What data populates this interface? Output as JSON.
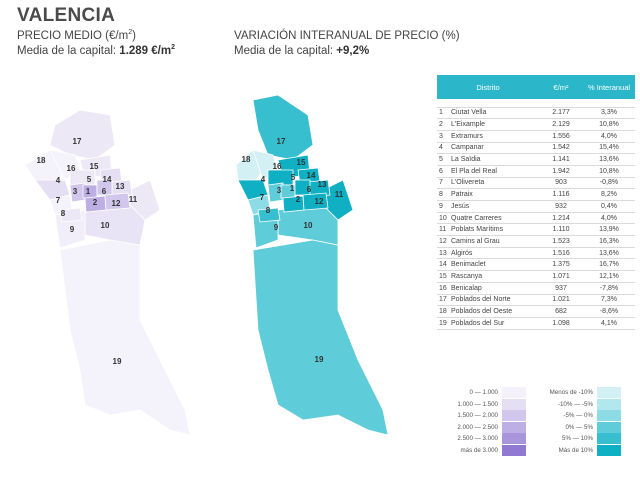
{
  "title": "VALENCIA",
  "price": {
    "heading": "PRECIO MEDIO (€/m",
    "heading_sup": "2",
    "heading_end": ")",
    "avg_label": "Media de la capital: ",
    "avg_value": "1.289 €/m",
    "avg_sup": "2"
  },
  "variation": {
    "heading": "VARIACIÓN INTERANUAL DE PRECIO (%)",
    "avg_label": "Media de la capital: ",
    "avg_value": "+9,2%"
  },
  "table": {
    "headers": [
      "Distrito",
      "€/m²",
      "% Interanual"
    ],
    "rows": [
      [
        "1",
        "Ciutat Vella",
        "2.177",
        "3,3%"
      ],
      [
        "2",
        "L'Eixample",
        "2.129",
        "10,8%"
      ],
      [
        "3",
        "Extramurs",
        "1.556",
        "4,0%"
      ],
      [
        "4",
        "Campanar",
        "1.542",
        "15,4%"
      ],
      [
        "5",
        "La Saïdia",
        "1.141",
        "13,6%"
      ],
      [
        "6",
        "El Pla del Real",
        "1.942",
        "10,8%"
      ],
      [
        "7",
        "L'Olivereta",
        "903",
        "-0,8%"
      ],
      [
        "8",
        "Patraix",
        "1.116",
        "8,2%"
      ],
      [
        "9",
        "Jesús",
        "932",
        "0,4%"
      ],
      [
        "10",
        "Quatre Carreres",
        "1.214",
        "4,0%"
      ],
      [
        "11",
        "Poblats Marítims",
        "1.110",
        "13,9%"
      ],
      [
        "12",
        "Camins al Grau",
        "1.523",
        "16,3%"
      ],
      [
        "13",
        "Algirós",
        "1.516",
        "13,6%"
      ],
      [
        "14",
        "Benimaclet",
        "1.375",
        "16,7%"
      ],
      [
        "15",
        "Rascanya",
        "1.071",
        "12,1%"
      ],
      [
        "16",
        "Benicalap",
        "937",
        "-7,8%"
      ],
      [
        "17",
        "Poblados del Norte",
        "1.021",
        "7,3%"
      ],
      [
        "18",
        "Poblados del Oeste",
        "682",
        "-8,6%"
      ],
      [
        "19",
        "Poblados del Sur",
        "1.098",
        "4,1%"
      ]
    ]
  },
  "legend_price": {
    "items": [
      {
        "label": "0  —  1.000",
        "color": "#f4f1fa"
      },
      {
        "label": "1.000  —  1.500",
        "color": "#e5dff4"
      },
      {
        "label": "1.500  —  2.000",
        "color": "#d1c7ec"
      },
      {
        "label": "2.000  —  2.500",
        "color": "#bdaee4"
      },
      {
        "label": "2.500  —  3.000",
        "color": "#a895db"
      }
    ],
    "last": {
      "label": "más de 3.000",
      "color": "#9178d0"
    }
  },
  "legend_var": {
    "items": [
      {
        "label": "Menos de -10%",
        "color": "#d3f1f5"
      },
      {
        "label": "-10%  —  -5%",
        "color": "#b2e7ee"
      },
      {
        "label": "-5%  —  0%",
        "color": "#8ddbe5"
      },
      {
        "label": "0%  —  5%",
        "color": "#5fccda"
      },
      {
        "label": "5%  —  10%",
        "color": "#37bfcf"
      },
      {
        "label": "Más de 10%",
        "color": "#0fb0c3"
      }
    ]
  },
  "map_labels": [
    "1",
    "2",
    "3",
    "4",
    "5",
    "6",
    "7",
    "8",
    "9",
    "10",
    "11",
    "12",
    "13",
    "14",
    "15",
    "16",
    "17",
    "18",
    "19"
  ],
  "colors": {
    "price_fill_light": "#ece8f6",
    "price_fill_pale": "#f4f2fa",
    "var_fill_dark": "#0fb0c3",
    "var_fill_mid": "#5fccda",
    "var_fill_light": "#9ddfe7",
    "header_teal": "#2bb7c9"
  }
}
